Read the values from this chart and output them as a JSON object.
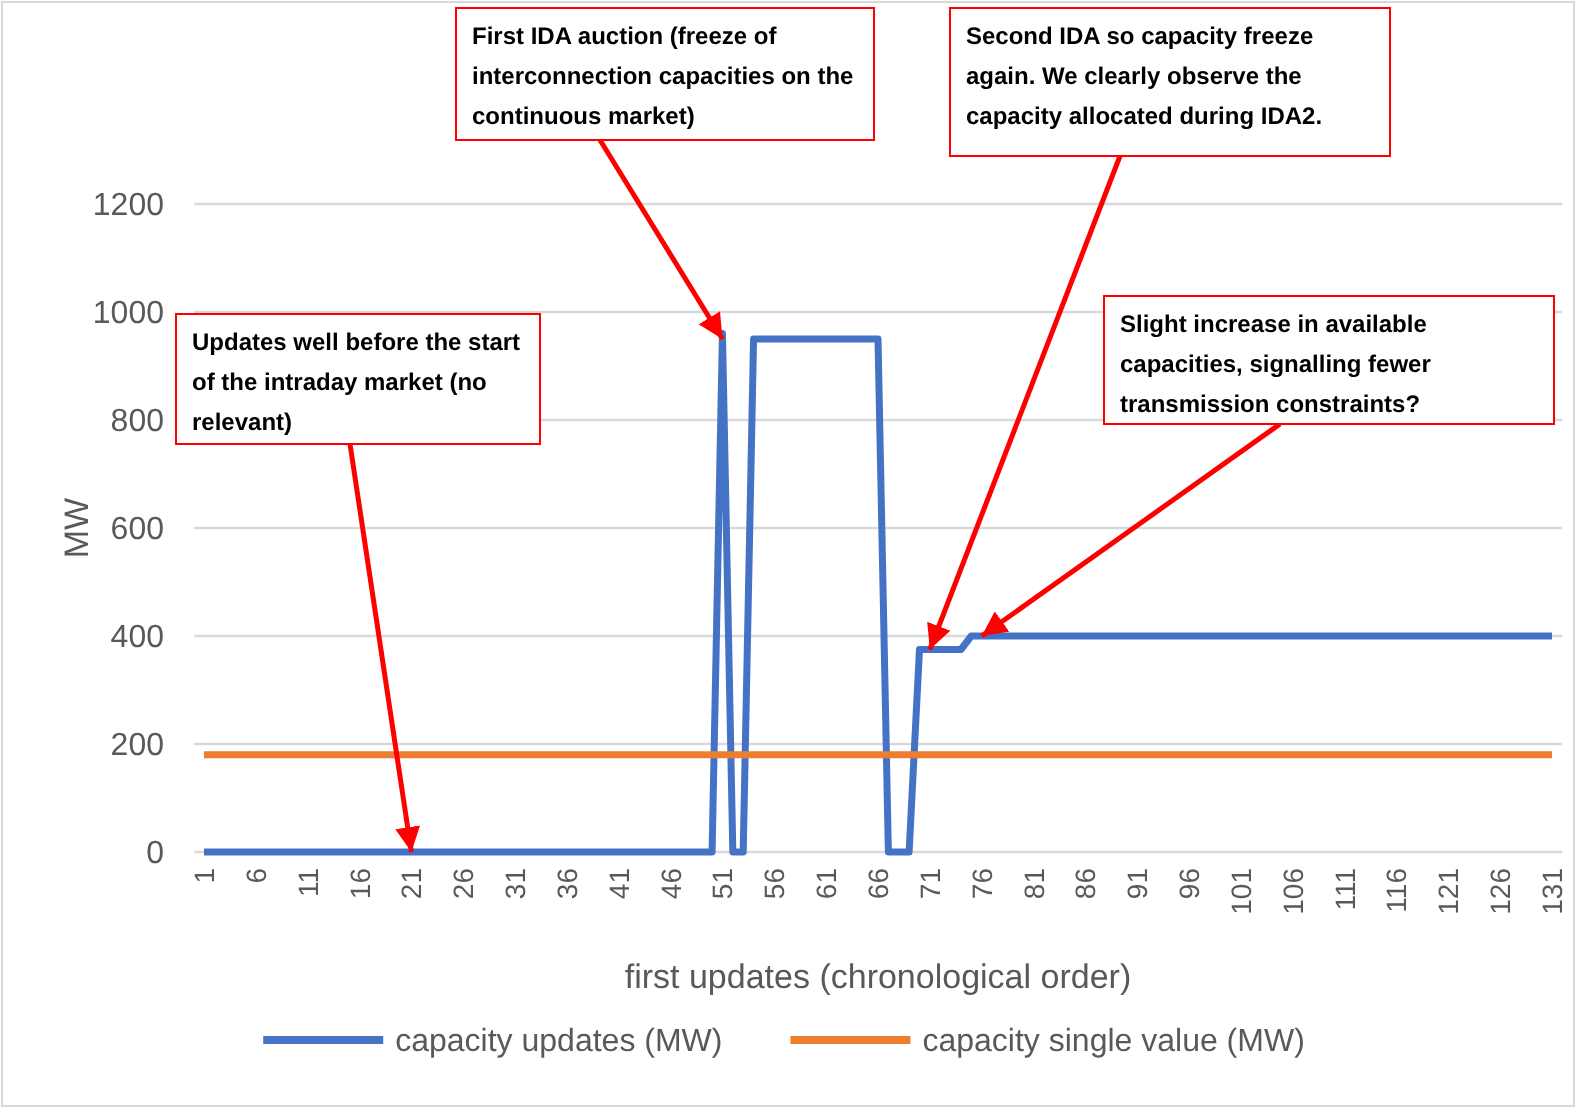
{
  "chart_data": {
    "type": "line",
    "xlabel": "first updates (chronological order)",
    "ylabel": "MW",
    "categories": [
      "1",
      null,
      null,
      null,
      null,
      "6",
      null,
      null,
      null,
      null,
      "11",
      null,
      null,
      null,
      null,
      "16",
      null,
      null,
      null,
      null,
      "21",
      null,
      null,
      null,
      null,
      "26",
      null,
      null,
      null,
      null,
      "31",
      null,
      null,
      null,
      null,
      "36",
      null,
      null,
      null,
      null,
      "41",
      null,
      null,
      null,
      null,
      "46",
      null,
      null,
      null,
      null,
      "51",
      null,
      null,
      null,
      null,
      "56",
      null,
      null,
      null,
      null,
      "61",
      null,
      null,
      null,
      null,
      "66",
      null,
      null,
      null,
      null,
      "71",
      null,
      null,
      null,
      null,
      "76",
      null,
      null,
      null,
      null,
      "81",
      null,
      null,
      null,
      null,
      "86",
      null,
      null,
      null,
      null,
      "91",
      null,
      null,
      null,
      null,
      "96",
      null,
      null,
      null,
      null,
      "101",
      null,
      null,
      null,
      null,
      "106",
      null,
      null,
      null,
      null,
      "111",
      null,
      null,
      null,
      null,
      "116",
      null,
      null,
      null,
      null,
      "121",
      null,
      null,
      null,
      null,
      "126",
      null,
      null,
      null,
      null,
      "131"
    ],
    "series": [
      {
        "name": "capacity updates (MW)",
        "color": "#4472c4",
        "values": [
          0,
          0,
          0,
          0,
          0,
          0,
          0,
          0,
          0,
          0,
          0,
          0,
          0,
          0,
          0,
          0,
          0,
          0,
          0,
          0,
          0,
          0,
          0,
          0,
          0,
          0,
          0,
          0,
          0,
          0,
          0,
          0,
          0,
          0,
          0,
          0,
          0,
          0,
          0,
          0,
          0,
          0,
          0,
          0,
          0,
          0,
          0,
          0,
          0,
          0,
          960,
          0,
          0,
          950,
          950,
          950,
          950,
          950,
          950,
          950,
          950,
          950,
          950,
          950,
          950,
          950,
          0,
          0,
          0,
          375,
          375,
          375,
          375,
          375,
          400,
          400,
          400,
          400,
          400,
          400,
          400,
          400,
          400,
          400,
          400,
          400,
          400,
          400,
          400,
          400,
          400,
          400,
          400,
          400,
          400,
          400,
          400,
          400,
          400,
          400,
          400,
          400,
          400,
          400,
          400,
          400,
          400,
          400,
          400,
          400,
          400,
          400,
          400,
          400,
          400,
          400,
          400,
          400,
          400,
          400,
          400,
          400,
          400,
          400,
          400,
          400,
          400,
          400,
          400,
          400,
          400
        ]
      },
      {
        "name": "capacity single value (MW)",
        "color": "#ed7d31",
        "values": [
          180,
          180,
          180,
          180,
          180,
          180,
          180,
          180,
          180,
          180,
          180,
          180,
          180,
          180,
          180,
          180,
          180,
          180,
          180,
          180,
          180,
          180,
          180,
          180,
          180,
          180,
          180,
          180,
          180,
          180,
          180,
          180,
          180,
          180,
          180,
          180,
          180,
          180,
          180,
          180,
          180,
          180,
          180,
          180,
          180,
          180,
          180,
          180,
          180,
          180,
          180,
          180,
          180,
          180,
          180,
          180,
          180,
          180,
          180,
          180,
          180,
          180,
          180,
          180,
          180,
          180,
          180,
          180,
          180,
          180,
          180,
          180,
          180,
          180,
          180,
          180,
          180,
          180,
          180,
          180,
          180,
          180,
          180,
          180,
          180,
          180,
          180,
          180,
          180,
          180,
          180,
          180,
          180,
          180,
          180,
          180,
          180,
          180,
          180,
          180,
          180,
          180,
          180,
          180,
          180,
          180,
          180,
          180,
          180,
          180,
          180,
          180,
          180,
          180,
          180,
          180,
          180,
          180,
          180,
          180,
          180,
          180,
          180,
          180,
          180,
          180,
          180,
          180,
          180,
          180,
          180
        ]
      }
    ],
    "ylim": [
      0,
      1200
    ],
    "yticks": [
      0,
      200,
      400,
      600,
      800,
      1000,
      1200
    ],
    "grid": "y",
    "legend": "bottom",
    "marker": "none",
    "line_style": "solid",
    "annotations": [
      {
        "text": "Updates well before the start of the intraday market (no relevant)",
        "x": "21",
        "y": 0
      },
      {
        "text": "First IDA auction (freeze of interconnection capacities on the continuous market)",
        "x": "51",
        "y": 950
      },
      {
        "text": "Second IDA so capacity freeze again. We clearly observe the capacity allocated during IDA2.",
        "x": "71",
        "y": 375
      },
      {
        "text": "Slight increase in available capacities, signalling fewer transmission constraints?",
        "x": "76",
        "y": 400
      }
    ]
  }
}
